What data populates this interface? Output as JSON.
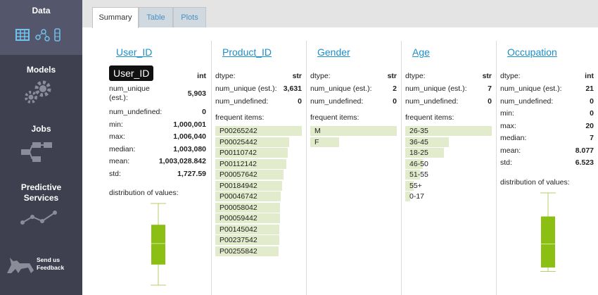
{
  "sidebar": {
    "items": [
      "Data",
      "Models",
      "Jobs",
      "Predictive Services"
    ],
    "feedback": "Send us Feedback"
  },
  "tabs": [
    "Summary",
    "Table",
    "Plots"
  ],
  "columns": [
    {
      "name": "User_ID",
      "badge": "User_ID",
      "dtype": "int",
      "stats": [
        [
          "num_unique (est.):",
          "5,903"
        ],
        [
          "num_undefined:",
          "0"
        ],
        [
          "min:",
          "1,000,001"
        ],
        [
          "max:",
          "1,006,040"
        ],
        [
          "median:",
          "1,003,080"
        ],
        [
          "mean:",
          "1,003,028.842"
        ],
        [
          "std:",
          "1,727.59"
        ]
      ],
      "dist_label": "distribution of values:",
      "boxplot": {
        "min": 1000001,
        "q1": 1001523,
        "median": 1003080,
        "q3": 1004467,
        "max": 1006040
      }
    },
    {
      "name": "Product_ID",
      "dtype_label": "dtype:",
      "dtype": "str",
      "stats": [
        [
          "num_unique (est.):",
          "3,631"
        ],
        [
          "num_undefined:",
          "0"
        ]
      ],
      "freq_label": "frequent items:",
      "frequent_items": [
        [
          "P00265242",
          100
        ],
        [
          "P00025442",
          85
        ],
        [
          "P00110742",
          84
        ],
        [
          "P00112142",
          82
        ],
        [
          "P00057642",
          79
        ],
        [
          "P00184942",
          77
        ],
        [
          "P00046742",
          76
        ],
        [
          "P00058042",
          75
        ],
        [
          "P00059442",
          75
        ],
        [
          "P00145042",
          74
        ],
        [
          "P00237542",
          74
        ],
        [
          "P00255842",
          73
        ]
      ]
    },
    {
      "name": "Gender",
      "dtype_label": "dtype:",
      "dtype": "str",
      "stats": [
        [
          "num_unique (est.):",
          "2"
        ],
        [
          "num_undefined:",
          "0"
        ]
      ],
      "freq_label": "frequent items:",
      "frequent_items": [
        [
          "M",
          100
        ],
        [
          "F",
          33
        ]
      ]
    },
    {
      "name": "Age",
      "dtype_label": "dtype:",
      "dtype": "str",
      "stats": [
        [
          "num_unique (est.):",
          "7"
        ],
        [
          "num_undefined:",
          "0"
        ]
      ],
      "freq_label": "frequent items:",
      "frequent_items": [
        [
          "26-35",
          100
        ],
        [
          "36-45",
          50
        ],
        [
          "18-25",
          45
        ],
        [
          "46-50",
          20
        ],
        [
          "51-55",
          17
        ],
        [
          "55+",
          10
        ],
        [
          "0-17",
          6
        ]
      ]
    },
    {
      "name": "Occupation",
      "dtype_label": "dtype:",
      "dtype": "int",
      "stats": [
        [
          "num_unique (est.):",
          "21"
        ],
        [
          "num_undefined:",
          "0"
        ],
        [
          "min:",
          "0"
        ],
        [
          "max:",
          "20"
        ],
        [
          "median:",
          "7"
        ],
        [
          "mean:",
          "8.077"
        ],
        [
          "std:",
          "6.523"
        ]
      ],
      "dist_label": "distribution of values:",
      "boxplot": {
        "min": 0,
        "q1": 1,
        "median": 7,
        "q3": 14,
        "max": 20
      }
    }
  ]
}
